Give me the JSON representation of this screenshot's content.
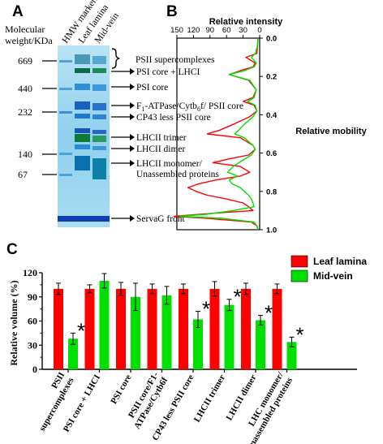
{
  "colors": {
    "leaf_lamina": "#ff0000",
    "mid_vein": "#00e000",
    "gel_background": "#9fd6ee",
    "gel_band_dark": "#0b3fb0"
  },
  "panel_a": {
    "label": "A",
    "y_title_line1": "Molecular",
    "y_title_line2": "weight/KDa",
    "lane_labels": [
      "HMW markers",
      "Leaf lamina",
      "Mid-vein"
    ],
    "mw_markers": [
      "669",
      "440",
      "232",
      "140",
      "67"
    ],
    "bands": [
      {
        "label": "PSII supercomplexes",
        "sub": ""
      },
      {
        "label": "PSI core + LHCI",
        "sub": ""
      },
      {
        "label": "PSI core",
        "sub": ""
      },
      {
        "label_pre": "F",
        "label_sub1": "1",
        "label_mid": "-ATPase/Cytb",
        "label_sub2": "6",
        "label_post": "f/ PSII core"
      },
      {
        "label": "CP43 less PSII core",
        "sub": ""
      },
      {
        "label": "LHCII trimer",
        "sub": ""
      },
      {
        "label": "LHCII dimer",
        "sub": ""
      },
      {
        "label": "LHCII monomer/",
        "sub": "Unassembled proteins"
      },
      {
        "label": "ServaG front",
        "sub": ""
      }
    ]
  },
  "panel_b": {
    "label": "B",
    "x_title": "Relative intensity",
    "x_ticks": [
      "150",
      "120",
      "90",
      "60",
      "30",
      "0"
    ],
    "y_ticks": [
      "0.0",
      "0.2",
      "0.4",
      "0.6",
      "0.8",
      "1.0"
    ],
    "y_title": "Relative mobility"
  },
  "panel_c": {
    "label": "C",
    "legend": [
      "Leaf lamina",
      "Mid-vein"
    ],
    "asterisk": "*"
  },
  "chart_data": [
    {
      "type": "line",
      "panel": "B",
      "xlabel": "Relative intensity",
      "ylabel": "Relative mobility",
      "xlim": [
        150,
        0
      ],
      "ylim": [
        0.0,
        1.0
      ],
      "series": [
        {
          "name": "Leaf lamina",
          "x": [
            3,
            4,
            5,
            25,
            8,
            12,
            35,
            55,
            20,
            6,
            12,
            30,
            10,
            5,
            18,
            48,
            72,
            95,
            35,
            12,
            8,
            20,
            55,
            85,
            35,
            18,
            35,
            78,
            110,
            130,
            115,
            95,
            60,
            30,
            20,
            12,
            65,
            110,
            155,
            100,
            15,
            5,
            3
          ],
          "y": [
            0.0,
            0.04,
            0.08,
            0.1,
            0.13,
            0.15,
            0.17,
            0.19,
            0.22,
            0.27,
            0.31,
            0.33,
            0.35,
            0.38,
            0.41,
            0.45,
            0.48,
            0.5,
            0.52,
            0.56,
            0.58,
            0.61,
            0.63,
            0.65,
            0.67,
            0.7,
            0.72,
            0.74,
            0.76,
            0.78,
            0.8,
            0.82,
            0.84,
            0.86,
            0.88,
            0.9,
            0.91,
            0.92,
            0.93,
            0.94,
            0.96,
            0.98,
            1.0
          ]
        },
        {
          "name": "Mid-vein",
          "x": [
            3,
            4,
            8,
            15,
            6,
            10,
            28,
            55,
            18,
            6,
            10,
            22,
            8,
            5,
            12,
            28,
            38,
            45,
            28,
            12,
            8,
            15,
            32,
            48,
            58,
            40,
            55,
            50,
            35,
            28,
            20,
            15,
            12,
            10,
            48,
            98,
            145,
            70,
            10,
            5,
            3
          ],
          "y": [
            0.0,
            0.04,
            0.08,
            0.1,
            0.13,
            0.15,
            0.17,
            0.19,
            0.22,
            0.27,
            0.31,
            0.33,
            0.35,
            0.38,
            0.41,
            0.45,
            0.48,
            0.5,
            0.52,
            0.56,
            0.58,
            0.61,
            0.64,
            0.67,
            0.7,
            0.72,
            0.74,
            0.76,
            0.78,
            0.8,
            0.82,
            0.84,
            0.86,
            0.88,
            0.9,
            0.92,
            0.93,
            0.94,
            0.96,
            0.98,
            1.0
          ]
        }
      ]
    },
    {
      "type": "bar",
      "panel": "C",
      "ylabel": "Relative volume (%)",
      "ylim": [
        0,
        120
      ],
      "yticks": [
        0,
        30,
        60,
        90,
        120
      ],
      "categories": [
        "PSII supercomplexes",
        "PSI core + LHCI",
        "PSI core",
        "PSII core/F1-ATPase/Cytb6f",
        "CP43 less PSII core",
        "LHCII trimer",
        "LHCII dimer",
        "LHC monomer/ Unassembled proteins"
      ],
      "category_lines": [
        [
          "PSII",
          "supercomplexes"
        ],
        [
          "PSI core + LHCI"
        ],
        [
          "PSI core"
        ],
        [
          "PSII core/F1-",
          "ATPase/Cytb6f"
        ],
        [
          "CP43 less PSII core"
        ],
        [
          "LHCII trimer"
        ],
        [
          "LHCII dimer"
        ],
        [
          "LHC monomer/",
          "Unassembled proteins"
        ]
      ],
      "series": [
        {
          "name": "Leaf lamina",
          "values": [
            100,
            100,
            100,
            100,
            100,
            100,
            100,
            100
          ],
          "errors": [
            7,
            5,
            8,
            6,
            6,
            9,
            7,
            6
          ]
        },
        {
          "name": "Mid-vein",
          "values": [
            38,
            110,
            90,
            92,
            62,
            80,
            61,
            34
          ],
          "errors": [
            7,
            9,
            17,
            11,
            10,
            7,
            6,
            6
          ]
        }
      ],
      "significant": [
        true,
        false,
        false,
        false,
        true,
        true,
        true,
        true
      ]
    }
  ]
}
